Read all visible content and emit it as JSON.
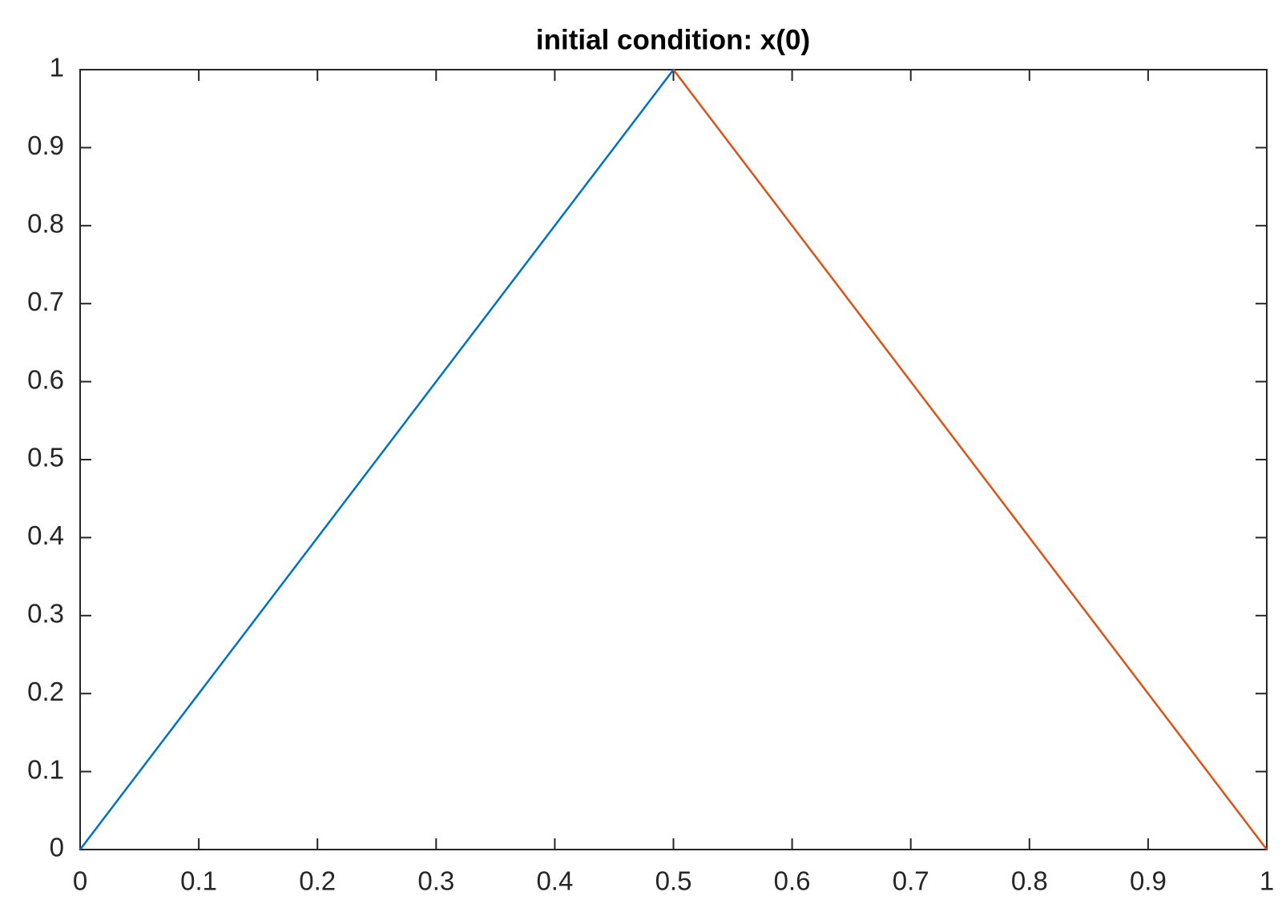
{
  "chart_data": {
    "type": "line",
    "title": "initial condition: x(0)",
    "series": [
      {
        "color": "#0072bd",
        "x": [
          0,
          0.5
        ],
        "values": [
          0,
          1
        ]
      },
      {
        "color": "#d95319",
        "x": [
          0.5,
          1
        ],
        "values": [
          1,
          0
        ]
      }
    ],
    "xlim": [
      0,
      1
    ],
    "ylim": [
      0,
      1
    ],
    "xticks": [
      0,
      0.1,
      0.2,
      0.3,
      0.4,
      0.5,
      0.6,
      0.7,
      0.8,
      0.9,
      1
    ],
    "yticks": [
      0,
      0.1,
      0.2,
      0.3,
      0.4,
      0.5,
      0.6,
      0.7,
      0.8,
      0.9,
      1
    ],
    "grid": false
  }
}
